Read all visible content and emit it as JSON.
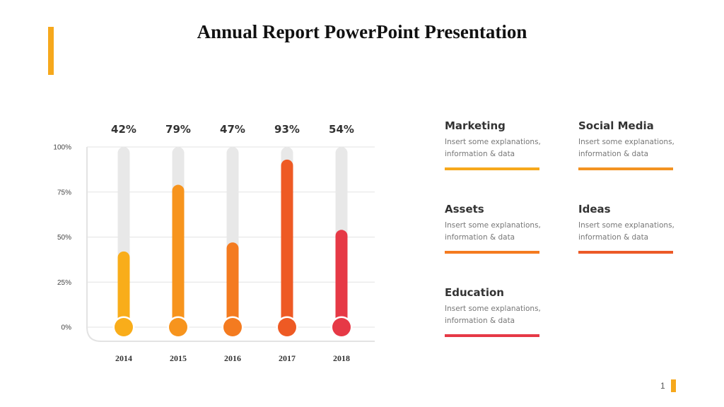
{
  "title": "Annual Report PowerPoint Presentation",
  "page_number": "1",
  "chart_data": {
    "type": "bar",
    "categories": [
      "2014",
      "2015",
      "2016",
      "2017",
      "2018"
    ],
    "values": [
      42,
      79,
      47,
      93,
      54
    ],
    "value_labels": [
      "42%",
      "79%",
      "47%",
      "93%",
      "54%"
    ],
    "yticks": [
      "0%",
      "25%",
      "50%",
      "75%",
      "100%"
    ],
    "ylim": [
      0,
      100
    ],
    "colors": [
      "#f9ad1a",
      "#f7941d",
      "#f47b20",
      "#ee5a24",
      "#e63946"
    ],
    "track_color": "#e8e8e8",
    "grid": true
  },
  "cards": [
    {
      "title": "Marketing",
      "desc_line1": "Insert some explanations,",
      "desc_line2": "information & data",
      "color": "#f6a81c"
    },
    {
      "title": "Social Media",
      "desc_line1": "Insert some explanations,",
      "desc_line2": "information & data",
      "color": "#f39322"
    },
    {
      "title": "Assets",
      "desc_line1": "Insert some explanations,",
      "desc_line2": "information & data",
      "color": "#f47b20"
    },
    {
      "title": "Ideas",
      "desc_line1": "Insert some explanations,",
      "desc_line2": "information & data",
      "color": "#ec5a27"
    },
    {
      "title": "Education",
      "desc_line1": "Insert some explanations,",
      "desc_line2": "information & data",
      "color": "#e63946"
    }
  ]
}
